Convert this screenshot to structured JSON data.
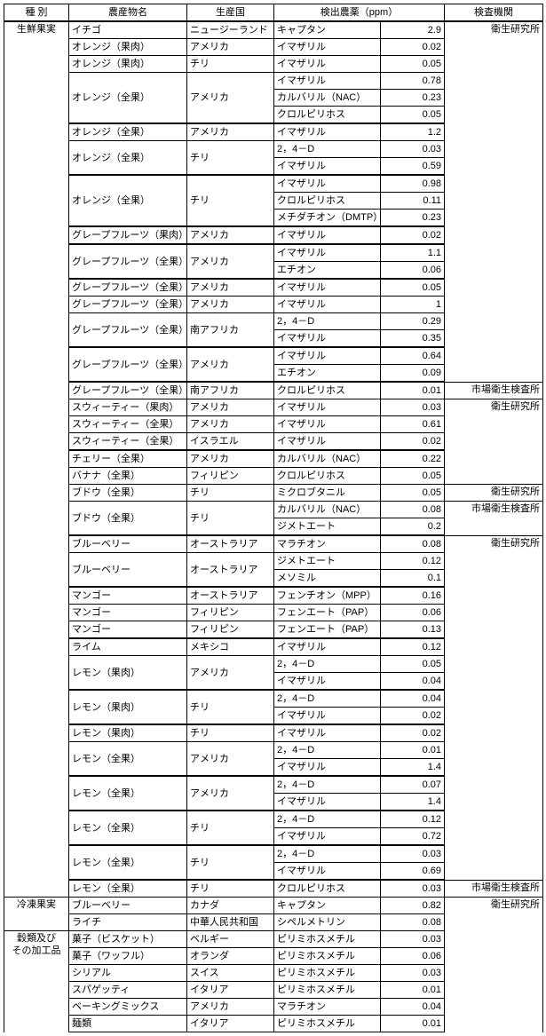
{
  "header": {
    "c1": "種 別",
    "c2": "農産物名",
    "c3": "生産国",
    "c45": "検出農薬（ppm）",
    "c6": "検査機関"
  },
  "categories": {
    "cat1": "生鮮果実",
    "cat2": "冷凍果実",
    "cat3a": "穀類及び",
    "cat3b": "その加工品"
  },
  "inst": {
    "eiken": "衛生研究所",
    "shijo": "市場衛生検査所"
  },
  "rows": [
    {
      "cat": "cat1",
      "name": "イチゴ",
      "country": "ニュージーランド",
      "chem": "キャプタン",
      "val": "2.9",
      "inst": "eiken",
      "top": "thin",
      "instTop": true,
      "catSpan": 51,
      "instSpan": 19
    },
    {
      "name": "オレンジ（果肉）",
      "country": "アメリカ",
      "chem": "イマザリル",
      "val": "0.02",
      "top": "thin"
    },
    {
      "name": "オレンジ（果肉）",
      "country": "チリ",
      "chem": "イマザリル",
      "val": "0.05",
      "top": "thin"
    },
    {
      "name": "オレンジ（全果）",
      "country": "アメリカ",
      "chem": "イマザリル",
      "val": "0.78",
      "top": "thin",
      "nameSpan": 3
    },
    {
      "chem": "カルバリル（NAC）",
      "val": "0.23",
      "top": "thin"
    },
    {
      "chem": "クロルピリホス",
      "val": "0.05",
      "top": "thin"
    },
    {
      "name": "オレンジ（全果）",
      "country": "アメリカ",
      "chem": "イマザリル",
      "val": "1.2",
      "top": "thick"
    },
    {
      "name": "オレンジ（全果）",
      "country": "チリ",
      "chem": "2，4－D",
      "val": "0.03",
      "top": "thin",
      "nameSpan": 2
    },
    {
      "chem": "イマザリル",
      "val": "0.59",
      "top": "thin"
    },
    {
      "name": "オレンジ（全果）",
      "country": "チリ",
      "chem": "イマザリル",
      "val": "0.98",
      "top": "thick",
      "nameSpan": 3
    },
    {
      "chem": "クロルピリホス",
      "val": "0.11",
      "top": "thin"
    },
    {
      "chem": "メチダチオン（DMTP）",
      "val": "0.23",
      "top": "thin"
    },
    {
      "name": "グレープフルーツ（果肉）",
      "country": "アメリカ",
      "chem": "イマザリル",
      "val": "0.02",
      "top": "thick"
    },
    {
      "name": "グレープフルーツ（全果）",
      "country": "アメリカ",
      "chem": "イマザリル",
      "val": "1.1",
      "top": "thick",
      "nameSpan": 2
    },
    {
      "chem": "エチオン",
      "val": "0.06",
      "top": "thin"
    },
    {
      "name": "グレープフルーツ（全果）",
      "country": "アメリカ",
      "chem": "イマザリル",
      "val": "0.05",
      "top": "thick"
    },
    {
      "name": "グレープフルーツ（全果）",
      "country": "アメリカ",
      "chem": "イマザリル",
      "val": "1",
      "top": "thin"
    },
    {
      "name": "グレープフルーツ（全果）",
      "country": "南アフリカ",
      "chem": "2，4－D",
      "val": "0.29",
      "top": "thin",
      "nameSpan": 2
    },
    {
      "chem": "イマザリル",
      "val": "0.35",
      "top": "thin"
    },
    {
      "name": "グレープフルーツ（全果）",
      "country": "アメリカ",
      "chem": "イマザリル",
      "val": "0.64",
      "top": "thick",
      "nameSpan": 2,
      "instSpan": 2,
      "inst": null
    },
    {
      "chem": "エチオン",
      "val": "0.09",
      "top": "thin"
    },
    {
      "name": "グレープフルーツ（全果）",
      "country": "南アフリカ",
      "chem": "クロルピリホス",
      "val": "0.01",
      "top": "thick",
      "inst": "shijo",
      "instTop": true,
      "instSpan": 1
    },
    {
      "name": "スウィーティー（果肉）",
      "country": "アメリカ",
      "chem": "イマザリル",
      "val": "0.03",
      "top": "thin",
      "inst": "eiken",
      "instTop": true,
      "instSpan": 5
    },
    {
      "name": "スウィーティー（全果）",
      "country": "アメリカ",
      "chem": "イマザリル",
      "val": "0.61",
      "top": "thin"
    },
    {
      "name": "スウィーティー（全果）",
      "country": "イスラエル",
      "chem": "イマザリル",
      "val": "0.02",
      "top": "thin"
    },
    {
      "name": "チェリー（全果）",
      "country": "アメリカ",
      "chem": "カルバリル（NAC）",
      "val": "0.22",
      "top": "thick"
    },
    {
      "name": "バナナ（全果）",
      "country": "フィリピン",
      "chem": "クロルピリホス",
      "val": "0.05",
      "top": "thin",
      "inst": "shijo",
      "instTop": true,
      "instSpan": 1
    },
    {
      "name": "ブドウ（全果）",
      "country": "チリ",
      "chem": "ミクロブタニル",
      "val": "0.05",
      "top": "thin",
      "inst": "eiken",
      "instTop": true,
      "instSpan": 1
    },
    {
      "name": "ブドウ（全果）",
      "country": "チリ",
      "chem": "カルバリル（NAC）",
      "val": "0.08",
      "top": "thin",
      "inst": "shijo",
      "instTop": true,
      "instSpan": 2,
      "nameSpan": 2
    },
    {
      "chem": "ジメトエート",
      "val": "0.2",
      "top": "thin"
    },
    {
      "name": "ブルーベリー",
      "country": "オーストラリア",
      "chem": "マラチオン",
      "val": "0.08",
      "top": "thick",
      "inst": "eiken",
      "instTop": true,
      "instSpan": 20
    },
    {
      "name": "ブルーベリー",
      "country": "オーストラリア",
      "chem": "ジメトエート",
      "val": "0.12",
      "top": "thin",
      "nameSpan": 2
    },
    {
      "chem": "メソミル",
      "val": "0.1",
      "top": "thin"
    },
    {
      "name": "マンゴー",
      "country": "オーストラリア",
      "chem": "フェンチオン（MPP）",
      "val": "0.16",
      "top": "thick"
    },
    {
      "name": "マンゴー",
      "country": "フィリピン",
      "chem": "フェンエート（PAP）",
      "val": "0.06",
      "top": "thin"
    },
    {
      "name": "マンゴー",
      "country": "フィリピン",
      "chem": "フェンエート（PAP）",
      "val": "0.13",
      "top": "thin"
    },
    {
      "name": "ライム",
      "country": "メキシコ",
      "chem": "イマザリル",
      "val": "0.12",
      "top": "thick"
    },
    {
      "name": "レモン（果肉）",
      "country": "アメリカ",
      "chem": "2，4－D",
      "val": "0.05",
      "top": "thin",
      "nameSpan": 2
    },
    {
      "chem": "イマザリル",
      "val": "0.04",
      "top": "thin"
    },
    {
      "name": "レモン（果肉）",
      "country": "チリ",
      "chem": "2，4－D",
      "val": "0.04",
      "top": "thick",
      "nameSpan": 2
    },
    {
      "chem": "イマザリル",
      "val": "0.02",
      "top": "thin"
    },
    {
      "name": "レモン（果肉）",
      "country": "チリ",
      "chem": "イマザリル",
      "val": "0.02",
      "top": "thick"
    },
    {
      "name": "レモン（全果）",
      "country": "アメリカ",
      "chem": "2，4－D",
      "val": "0.01",
      "top": "thin",
      "nameSpan": 2
    },
    {
      "chem": "イマザリル",
      "val": "1.4",
      "top": "thin"
    },
    {
      "name": "レモン（全果）",
      "country": "アメリカ",
      "chem": "2，4－D",
      "val": "0.07",
      "top": "thick",
      "nameSpan": 2
    },
    {
      "chem": "イマザリル",
      "val": "1.4",
      "top": "thin"
    },
    {
      "name": "レモン（全果）",
      "country": "チリ",
      "chem": "2，4－D",
      "val": "0.12",
      "top": "thick",
      "nameSpan": 2
    },
    {
      "chem": "イマザリル",
      "val": "0.72",
      "top": "thin"
    },
    {
      "name": "レモン（全果）",
      "country": "チリ",
      "chem": "2，4－D",
      "val": "0.03",
      "top": "thick",
      "nameSpan": 2
    },
    {
      "chem": "イマザリル",
      "val": "0.69",
      "top": "thin"
    },
    {
      "name": "レモン（全果）",
      "country": "チリ",
      "chem": "クロルピリホス",
      "val": "0.03",
      "top": "thick",
      "inst": "shijo",
      "instTop": true,
      "instSpan": 1
    },
    {
      "cat": "cat2",
      "name": "ブルーベリー",
      "country": "カナダ",
      "chem": "キャプタン",
      "val": "0.82",
      "top": "thin",
      "catSpan": 2,
      "inst": "eiken",
      "instTop": true,
      "instSpan": 8
    },
    {
      "name": "ライチ",
      "country": "中華人民共和国",
      "chem": "シペルメトリン",
      "val": "0.08",
      "top": "thin"
    },
    {
      "cat": "cat3",
      "name": "菓子（ビスケット）",
      "country": "ベルギー",
      "chem": "ピリミホスメチル",
      "val": "0.03",
      "top": "thin",
      "catSpan": 6
    },
    {
      "name": "菓子（ワッフル）",
      "country": "オランダ",
      "chem": "ピリミホスメチル",
      "val": "0.06",
      "top": "thin"
    },
    {
      "name": "シリアル",
      "country": "スイス",
      "chem": "ピリミホスメチル",
      "val": "0.03",
      "top": "thin"
    },
    {
      "name": "スパゲッティ",
      "country": "イタリア",
      "chem": "ピリミホスメチル",
      "val": "0.01",
      "top": "thin"
    },
    {
      "name": "ベーキングミックス",
      "country": "アメリカ",
      "chem": "マラチオン",
      "val": "0.04",
      "top": "thin"
    },
    {
      "name": "麺類",
      "country": "イタリア",
      "chem": "ピリミホスメチル",
      "val": "0.01",
      "top": "thin",
      "bottom": true
    }
  ]
}
